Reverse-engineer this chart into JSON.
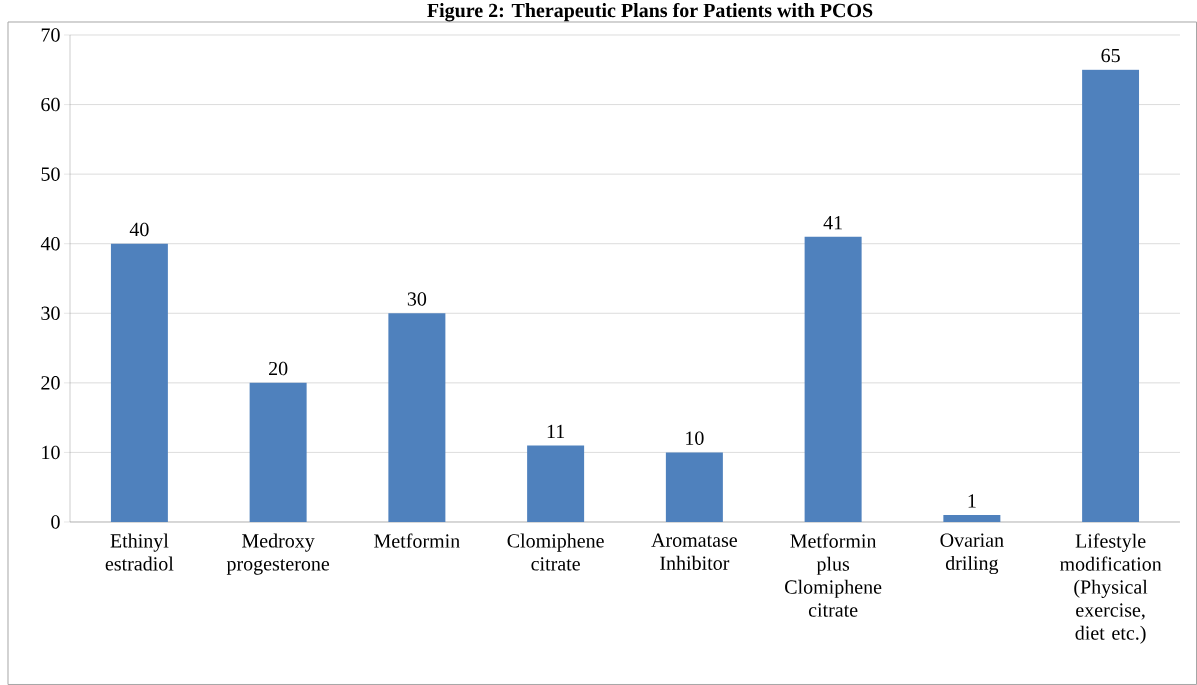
{
  "chart_data": {
    "type": "bar",
    "title": "Figure 2: Therapeutic Plans for Patients with PCOS",
    "categories": [
      "Ethinyl estradiol",
      "Medroxy progesterone",
      "Metformin",
      "Clomiphene citrate",
      "Aromatase Inhibitor",
      "Metformin plus Clomiphene citrate",
      "Ovarian driling",
      "Lifestyle modification (Physical exercise, diet etc.)"
    ],
    "values": [
      40,
      20,
      30,
      11,
      10,
      41,
      1,
      65
    ],
    "color": "#4f81bd",
    "ylim": [
      0,
      70
    ],
    "yticks": [
      0,
      10,
      20,
      30,
      40,
      50,
      60,
      70
    ],
    "grid": "y",
    "data_labels": true
  }
}
